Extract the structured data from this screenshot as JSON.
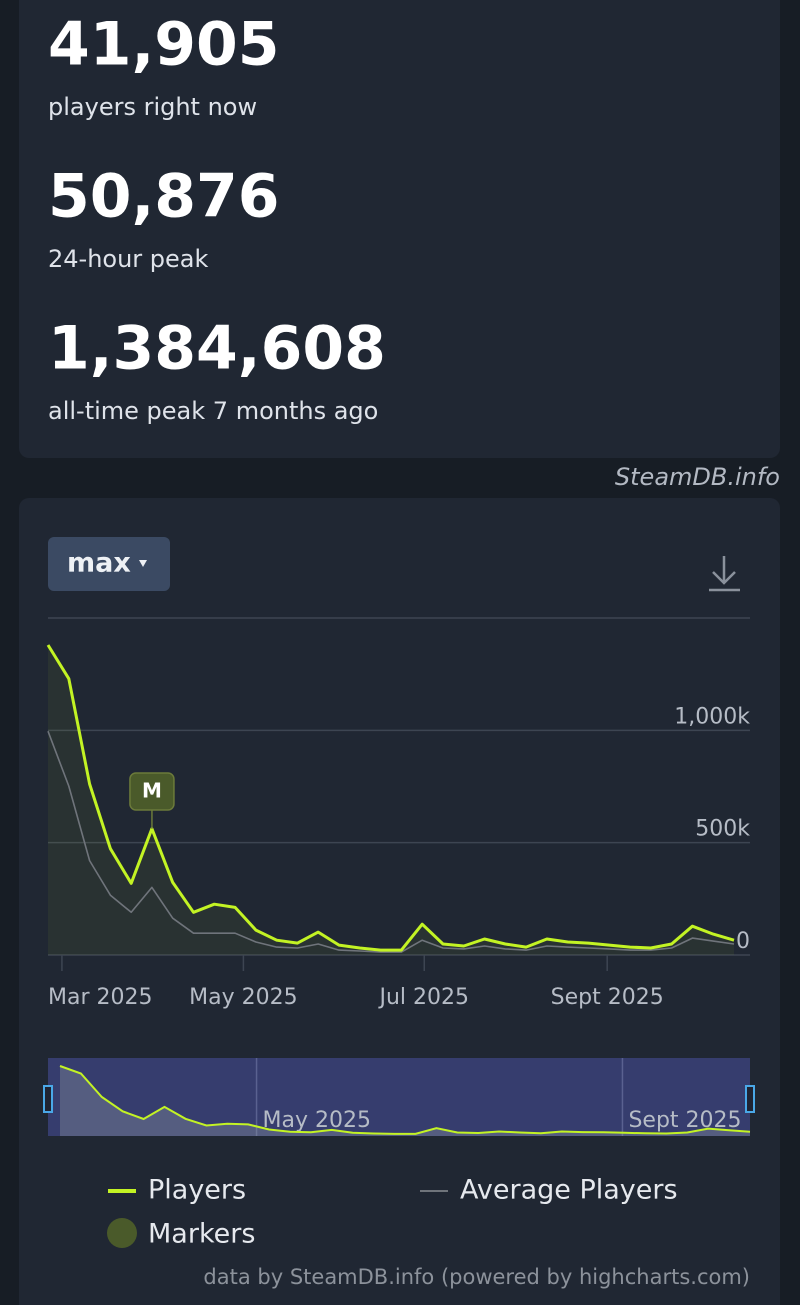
{
  "stats": [
    {
      "value": "41,905",
      "label": "players right now"
    },
    {
      "value": "50,876",
      "label": "24-hour peak"
    },
    {
      "value": "1,384,608",
      "label": "all-time peak 7 months ago"
    }
  ],
  "credit_top": "SteamDB.info",
  "range_button": "max",
  "footer": "data by SteamDB.info (powered by highcharts.com)",
  "marker_legend": "Markers",
  "chart_data": {
    "type": "line",
    "xlim": [
      0,
      33
    ],
    "xticks": [
      {
        "value": 0.67,
        "label": "Mar 2025"
      },
      {
        "value": 9.4,
        "label": "May 2025"
      },
      {
        "value": 18.1,
        "label": "Jul 2025"
      },
      {
        "value": 26.9,
        "label": "Sept 2025"
      }
    ],
    "ylim": [
      0,
      1500000
    ],
    "yticks": [
      {
        "value": 0,
        "label": "0"
      },
      {
        "value": 500000,
        "label": "500k"
      },
      {
        "value": 1000000,
        "label": "1,000k"
      }
    ],
    "grid": true,
    "series": [
      {
        "name": "Players",
        "color": "#c3f324",
        "values": [
          1380000,
          1230000,
          761000,
          473000,
          319000,
          562000,
          323000,
          190000,
          226000,
          212000,
          111000,
          66000,
          53000,
          102000,
          44000,
          31000,
          22000,
          22000,
          137000,
          49000,
          40000,
          71000,
          49000,
          35000,
          71000,
          58000,
          53000,
          44000,
          35000,
          31000,
          49000,
          128000,
          93000,
          66000
        ]
      },
      {
        "name": "Average Players",
        "color": "#6f747b",
        "values": [
          996000,
          752000,
          420000,
          266000,
          190000,
          301000,
          164000,
          97000,
          97000,
          97000,
          58000,
          35000,
          31000,
          49000,
          22000,
          18000,
          13000,
          13000,
          66000,
          31000,
          27000,
          40000,
          27000,
          22000,
          40000,
          35000,
          31000,
          27000,
          22000,
          22000,
          31000,
          75000,
          62000,
          49000
        ]
      }
    ],
    "markers": [
      {
        "x": 5,
        "label": "M"
      }
    ]
  }
}
